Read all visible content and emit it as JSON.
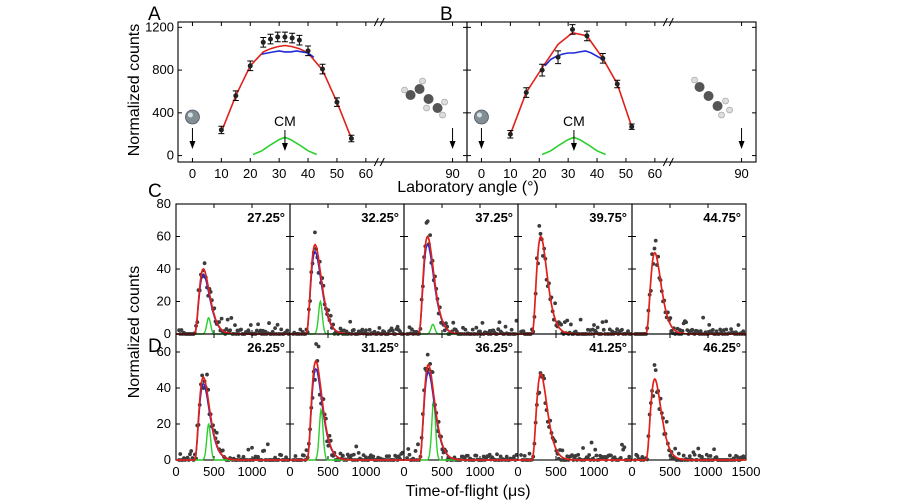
{
  "figure": {
    "panels_ab": {
      "xlabel": "Laboratory angle (°)",
      "ylabel": "Normalized counts"
    },
    "panels_cd": {
      "xlabel": "Time-of-flight (μs)",
      "ylabel": "Normalized counts"
    },
    "cm_label": "CM"
  },
  "colors": {
    "lab": "#e0201a",
    "blue": "#1f2bd6",
    "green": "#2ccf2c",
    "dots": "#3c3c3c",
    "gray": "#7f8f93"
  },
  "chart_data": [
    {
      "panel": "A",
      "type": "scatter",
      "xlim": [
        -5,
        95
      ],
      "ylim": [
        -60,
        1250
      ],
      "xticks": [
        0,
        10,
        20,
        30,
        40,
        50,
        60,
        90
      ],
      "yticks": [
        0,
        400,
        800,
        1200
      ],
      "axis_break_x": 65,
      "points": {
        "x": [
          10,
          15,
          20,
          24.5,
          27,
          29.5,
          32,
          34.5,
          37,
          40,
          45,
          50,
          55
        ],
        "y": [
          240,
          560,
          840,
          1060,
          1090,
          1110,
          1110,
          1100,
          1080,
          980,
          810,
          500,
          160
        ],
        "err": [
          35,
          45,
          45,
          45,
          45,
          45,
          45,
          45,
          45,
          45,
          45,
          40,
          30
        ]
      },
      "series": [
        {
          "color": "red",
          "x": [
            10,
            15,
            20,
            24.5,
            27,
            29.5,
            32,
            34.5,
            37,
            40,
            45,
            50,
            55
          ],
          "y": [
            220,
            560,
            840,
            970,
            1000,
            1020,
            1030,
            1020,
            1000,
            960,
            800,
            500,
            160
          ]
        },
        {
          "color": "blue",
          "x": [
            24,
            26,
            28,
            30,
            32,
            34,
            36,
            38,
            40,
            42
          ],
          "y": [
            950,
            960,
            970,
            980,
            970,
            970,
            980,
            970,
            960,
            920
          ]
        },
        {
          "color": "green",
          "x": [
            21,
            24,
            27,
            30,
            32,
            34,
            37,
            40,
            43
          ],
          "y": [
            10,
            45,
            100,
            150,
            170,
            150,
            100,
            45,
            10
          ]
        }
      ],
      "cm_angle": 32,
      "reactant_beam_angles": [
        0,
        90
      ]
    },
    {
      "panel": "B",
      "type": "scatter",
      "xlim": [
        -5,
        95
      ],
      "ylim": [
        -60,
        1250
      ],
      "xticks": [
        0,
        10,
        20,
        30,
        40,
        50,
        60,
        90
      ],
      "yticks": [
        0,
        400,
        800,
        1200
      ],
      "axis_break_x": 65,
      "points": {
        "x": [
          10,
          15.5,
          21,
          26.5,
          31.5,
          36.5,
          42,
          47,
          52
        ],
        "y": [
          200,
          590,
          800,
          920,
          1180,
          1120,
          910,
          670,
          270
        ],
        "err": [
          35,
          45,
          55,
          60,
          45,
          45,
          45,
          35,
          25
        ]
      },
      "series": [
        {
          "color": "red",
          "x": [
            10,
            15.5,
            21,
            26.5,
            31.5,
            36.5,
            42,
            47,
            52
          ],
          "y": [
            200,
            590,
            820,
            1040,
            1150,
            1120,
            910,
            670,
            270
          ]
        },
        {
          "color": "blue",
          "x": [
            22,
            24,
            26,
            28,
            30,
            32,
            34,
            36,
            38,
            40,
            42
          ],
          "y": [
            840,
            900,
            930,
            950,
            960,
            960,
            970,
            980,
            960,
            930,
            900
          ]
        },
        {
          "color": "green",
          "x": [
            21,
            24,
            27,
            30,
            32,
            34,
            37,
            40,
            43
          ],
          "y": [
            10,
            45,
            100,
            150,
            170,
            150,
            100,
            45,
            10
          ]
        }
      ],
      "cm_angle": 32,
      "reactant_beam_angles": [
        0,
        90
      ]
    },
    {
      "panel": "C",
      "type": "scatter",
      "ylim": [
        0,
        80
      ],
      "xlim": [
        0,
        1500
      ],
      "subplots": [
        {
          "label": "27.25°",
          "peak": 40,
          "t0": 360,
          "green_peak": 10
        },
        {
          "label": "32.25°",
          "peak": 55,
          "t0": 330,
          "green_peak": 20
        },
        {
          "label": "37.25°",
          "peak": 60,
          "t0": 310,
          "green_peak": 6
        },
        {
          "label": "39.75°",
          "peak": 60,
          "t0": 300,
          "green_peak": 0
        },
        {
          "label": "44.75°",
          "peak": 50,
          "t0": 300,
          "green_peak": 0
        }
      ]
    },
    {
      "panel": "D",
      "type": "scatter",
      "ylim": [
        0,
        70
      ],
      "xlim": [
        0,
        1500
      ],
      "subplots": [
        {
          "label": "26.25°",
          "peak": 46,
          "t0": 360,
          "green_peak": 20
        },
        {
          "label": "31.25°",
          "peak": 55,
          "t0": 340,
          "green_peak": 28
        },
        {
          "label": "36.25°",
          "peak": 53,
          "t0": 320,
          "green_peak": 33
        },
        {
          "label": "41.25°",
          "peak": 48,
          "t0": 300,
          "green_peak": 0
        },
        {
          "label": "46.25°",
          "peak": 45,
          "t0": 300,
          "green_peak": 0
        }
      ]
    }
  ]
}
